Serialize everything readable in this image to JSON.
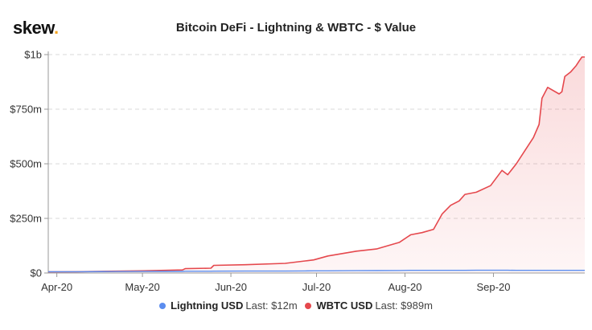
{
  "brand": {
    "name": "skew",
    "dot": "."
  },
  "chart_data": {
    "type": "area",
    "title": "Bitcoin DeFi - Lightning & WBTC - $ Value",
    "xlabel": "",
    "ylabel": "",
    "x_tick_labels": [
      "Apr-20",
      "May-20",
      "Jun-20",
      "Jul-20",
      "Aug-20",
      "Sep-20"
    ],
    "y_tick_labels": [
      "$0",
      "$250m",
      "$500m",
      "$750m",
      "$1b"
    ],
    "ylim": [
      0,
      1000
    ],
    "y_unit": "$m",
    "grid": true,
    "legend_position": "bottom",
    "x": [
      "2020-03-29",
      "2020-04-08",
      "2020-04-20",
      "2020-05-01",
      "2020-05-09",
      "2020-05-15",
      "2020-05-16",
      "2020-05-25",
      "2020-05-26",
      "2020-06-06",
      "2020-06-20",
      "2020-06-27",
      "2020-06-30",
      "2020-07-05",
      "2020-07-15",
      "2020-07-22",
      "2020-07-30",
      "2020-08-03",
      "2020-08-07",
      "2020-08-11",
      "2020-08-14",
      "2020-08-17",
      "2020-08-20",
      "2020-08-22",
      "2020-08-26",
      "2020-08-31",
      "2020-09-04",
      "2020-09-06",
      "2020-09-09",
      "2020-09-12",
      "2020-09-15",
      "2020-09-17",
      "2020-09-18",
      "2020-09-20",
      "2020-09-24",
      "2020-09-25",
      "2020-09-26",
      "2020-09-28",
      "2020-09-30",
      "2020-10-01",
      "2020-10-02",
      "2020-10-03"
    ],
    "series": [
      {
        "name": "Lightning USD",
        "color": "#5b8def",
        "last_label": "Last: $12m",
        "values": [
          6,
          6,
          6.5,
          7,
          7.5,
          7.5,
          8,
          8,
          8.5,
          9,
          9,
          9.5,
          10,
          10,
          10.5,
          11,
          11.5,
          12,
          12,
          12,
          12,
          12,
          12,
          12,
          12.5,
          12.5,
          12.5,
          12.5,
          12,
          12,
          12,
          12,
          12,
          12,
          12,
          12,
          12,
          12,
          12,
          12,
          12,
          12
        ]
      },
      {
        "name": "WBTC USD",
        "color": "#e5484d",
        "last_label": "Last: $989m",
        "values": [
          5,
          6,
          8,
          10,
          12,
          14,
          20,
          22,
          35,
          38,
          44,
          55,
          60,
          78,
          100,
          110,
          140,
          175,
          185,
          200,
          270,
          310,
          330,
          360,
          370,
          400,
          470,
          450,
          500,
          560,
          620,
          680,
          800,
          850,
          820,
          830,
          900,
          920,
          950,
          970,
          989,
          989
        ]
      }
    ]
  }
}
